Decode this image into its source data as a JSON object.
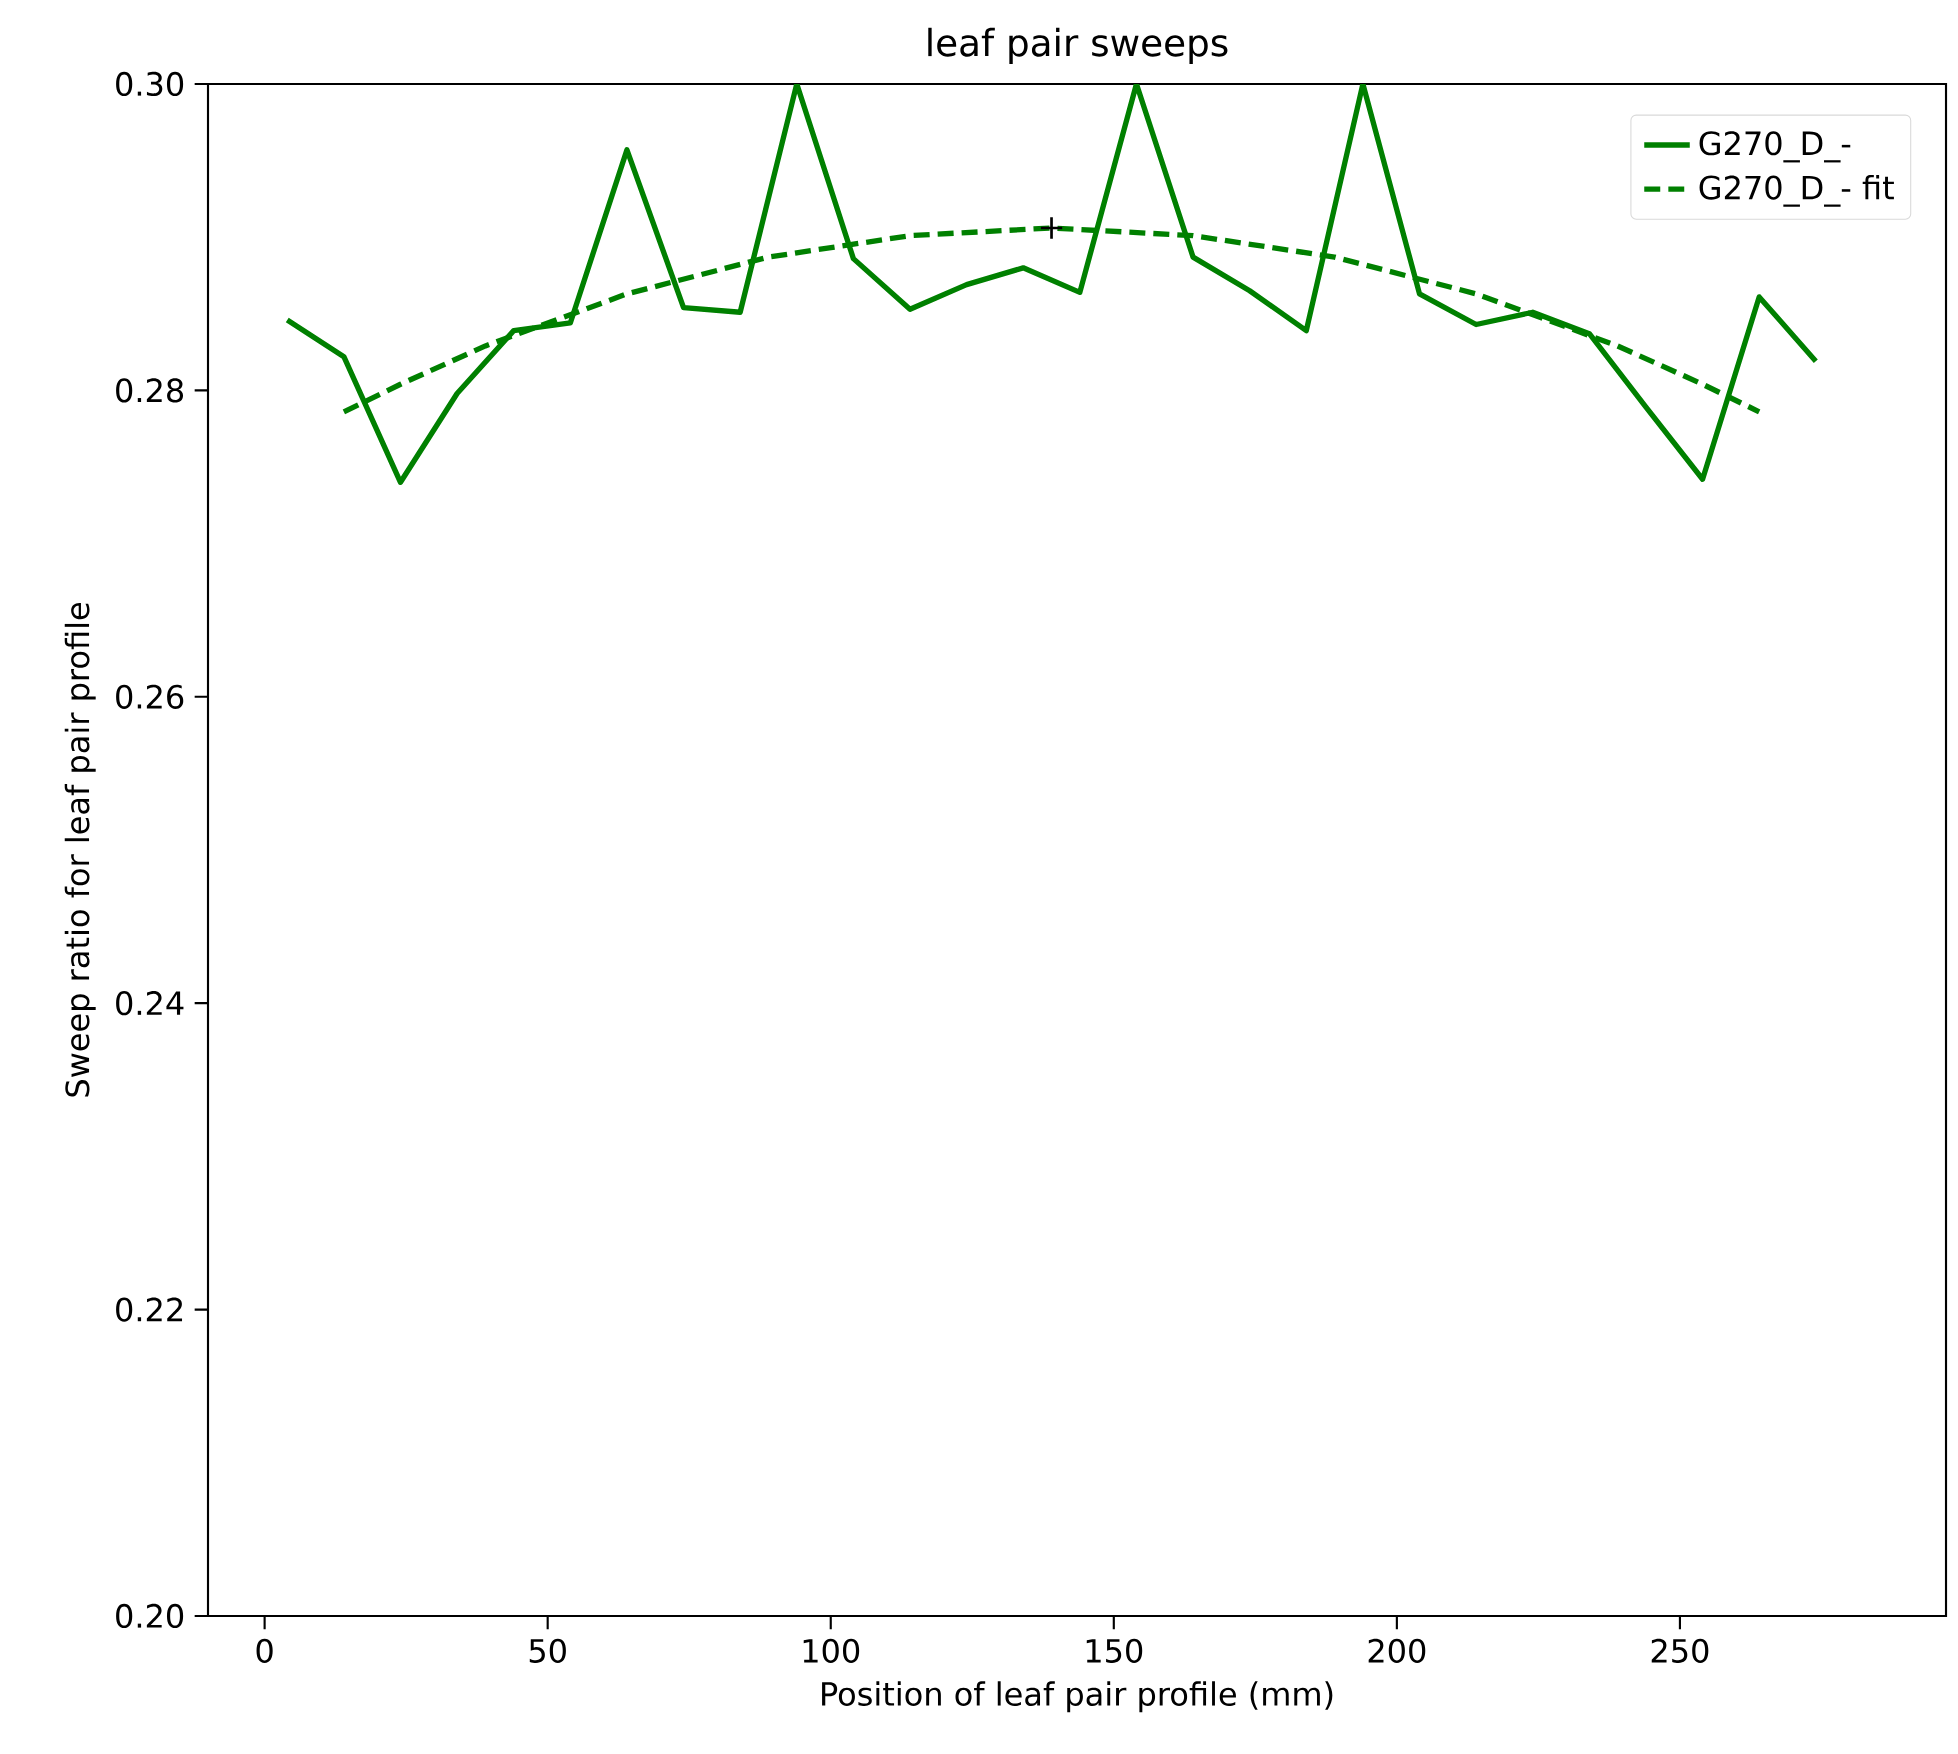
{
  "chart_data": {
    "type": "line",
    "title": "leaf pair sweeps",
    "xlabel": "Position of leaf pair profile (mm)",
    "ylabel": "Sweep ratio for leaf pair profile",
    "xlim": [
      -10,
      297
    ],
    "ylim": [
      0.2,
      0.3
    ],
    "xticks": [
      0,
      50,
      100,
      150,
      200,
      250
    ],
    "yticks": [
      {
        "value": 0.2,
        "label": "0.20"
      },
      {
        "value": 0.22,
        "label": "0.22"
      },
      {
        "value": 0.24,
        "label": "0.24"
      },
      {
        "value": 0.26,
        "label": "0.26"
      },
      {
        "value": 0.28,
        "label": "0.28"
      },
      {
        "value": 0.3,
        "label": "0.30"
      }
    ],
    "legend": "top right",
    "series": [
      {
        "name": "G270_D_-",
        "color": "#008000",
        "line_style": "solid",
        "x": [
          4,
          14,
          24,
          34,
          44,
          54,
          64,
          74,
          84,
          94,
          104,
          114,
          124,
          134,
          144,
          154,
          164,
          174,
          184,
          194,
          204,
          214,
          224,
          234,
          244,
          254,
          264,
          274
        ],
        "values": [
          0.2846,
          0.2822,
          0.274,
          0.2798,
          0.2839,
          0.2844,
          0.2957,
          0.2854,
          0.2851,
          0.3,
          0.2886,
          0.2853,
          0.2869,
          0.288,
          0.2864,
          0.3,
          0.2887,
          0.2865,
          0.2839,
          0.3,
          0.2863,
          0.2843,
          0.2851,
          0.2837,
          0.2789,
          0.2742,
          0.2861,
          0.2819
        ]
      },
      {
        "name": "G270_D_- fit",
        "color": "#008000",
        "line_style": "dashed",
        "x": [
          14,
          24,
          39,
          64,
          89,
          114,
          139,
          164,
          189,
          214,
          239,
          254,
          264
        ],
        "values": [
          0.2786,
          0.2804,
          0.2829,
          0.2863,
          0.2887,
          0.2901,
          0.2906,
          0.2901,
          0.2887,
          0.2863,
          0.2829,
          0.2804,
          0.2786
        ]
      },
      {
        "type": "scatter",
        "color": "#000000",
        "marker": "cross",
        "x": [
          139
        ],
        "values": [
          0.2906
        ]
      }
    ]
  }
}
